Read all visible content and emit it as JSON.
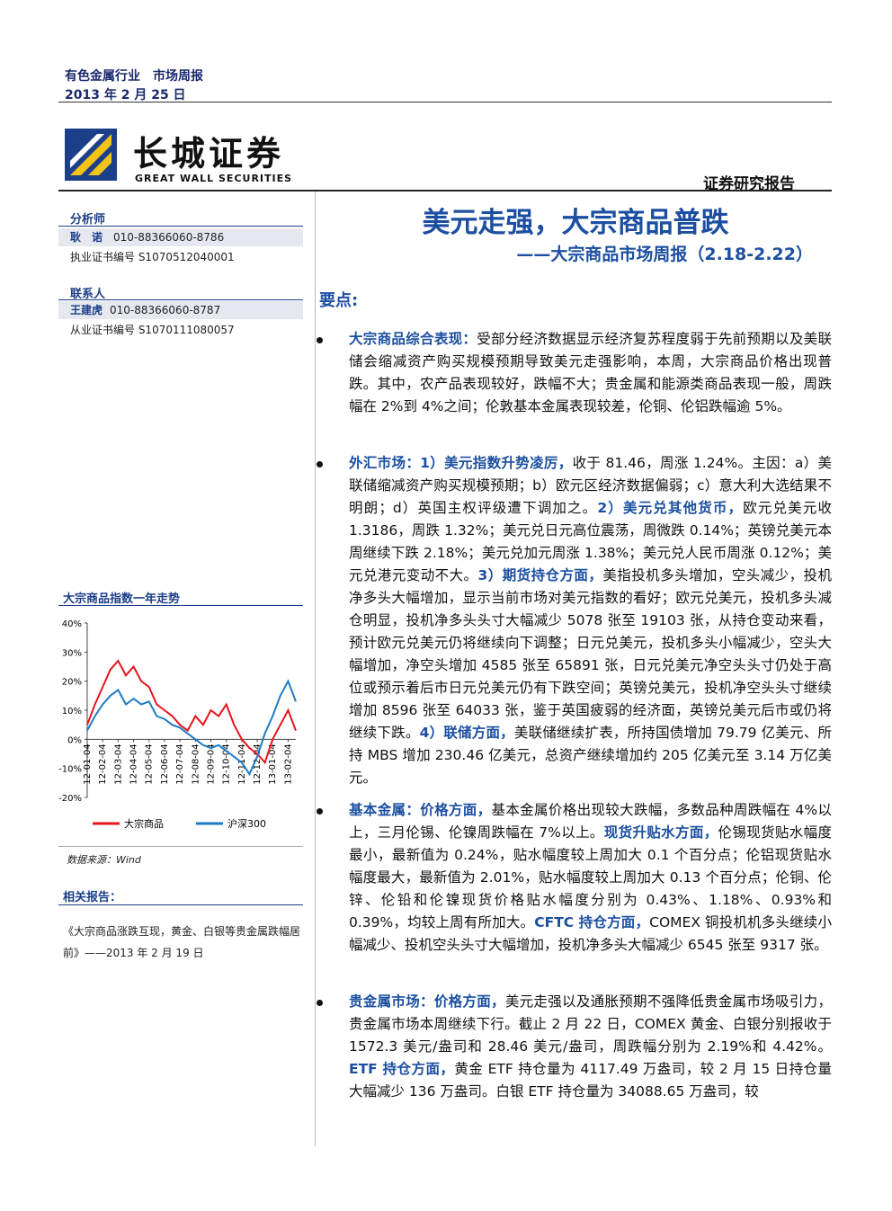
{
  "header": {
    "industry": "有色金属行业",
    "report_type": "市场周报",
    "date": "2013 年 2 月 25 日",
    "logo_cn": "长城证券",
    "logo_en": "GREAT WALL SECURITIES",
    "doc_type": "证券研究报告"
  },
  "sidebar": {
    "analyst_heading": "分析师",
    "analyst_name": "耿　诺",
    "analyst_phone": "010-88366060-8786",
    "analyst_cert": "执业证书编号 S1070512040001",
    "contact_heading": "联系人",
    "contact_name": "王建虎",
    "contact_phone": "010-88366060-8787",
    "contact_cert": "从业证书编号 S1070111080057",
    "chart_heading": "大宗商品指数一年走势",
    "source": "数据来源：Wind",
    "related_heading": "相关报告：",
    "related_report": "《大宗商品涨跌互现，黄金、白银等贵金属跌幅居前》——2013 年 2 月 19 日"
  },
  "chart_data": {
    "type": "line",
    "categories": [
      "12-01-04",
      null,
      "12-02-04",
      null,
      "12-03-04",
      null,
      "12-04-04",
      null,
      "12-05-04",
      null,
      "12-06-04",
      null,
      "12-07-04",
      null,
      "12-08-04",
      null,
      "12-09-04",
      null,
      "12-10-04",
      null,
      "12-11-04",
      null,
      "12-12-04",
      null,
      "13-01-04",
      null,
      "13-02-04",
      null
    ],
    "series": [
      {
        "name": "大宗商品",
        "color": "#e8151b",
        "values": [
          5,
          12,
          18,
          24,
          27,
          22,
          25,
          20,
          18,
          12,
          10,
          8,
          5,
          3,
          8,
          5,
          10,
          8,
          12,
          5,
          0,
          -3,
          -5,
          -8,
          0,
          5,
          10,
          3
        ]
      },
      {
        "name": "沪深300",
        "color": "#1f7bc4",
        "values": [
          3,
          8,
          12,
          15,
          17,
          12,
          14,
          12,
          13,
          8,
          7,
          5,
          4,
          2,
          0,
          -2,
          -3,
          -2,
          -4,
          -6,
          -8,
          -12,
          -6,
          2,
          8,
          15,
          20,
          13
        ]
      }
    ],
    "ylim": [
      -20,
      40
    ],
    "yticks": [
      {
        "value": 40,
        "label": "40%"
      },
      {
        "value": 30,
        "label": "30%"
      },
      {
        "value": 20,
        "label": "20%"
      },
      {
        "value": 10,
        "label": "10%"
      },
      {
        "value": 0,
        "label": "0%"
      },
      {
        "value": -10,
        "label": "-10%"
      },
      {
        "value": -20,
        "label": "-20%"
      }
    ],
    "legend": "bottom"
  },
  "main": {
    "title": "美元走强，大宗商品普跌",
    "subtitle": "——大宗商品市场周报（2.18-2.22）",
    "key_points_heading": "要点:",
    "points": [
      {
        "runs": [
          {
            "text": "大宗商品综合表现：",
            "strong": true
          },
          {
            "text": "受部分经济数据显示经济复苏程度弱于先前预期以及美联储会缩减资产购买规模预期导致美元走强影响，本周，大宗商品价格出现普跌。其中，农产品表现较好，跌幅不大；贵金属和能源类商品表现一般，周跌幅在 2%到 4%之间；伦敦基本金属表现较差，伦铜、伦铝跌幅逾 5%。"
          }
        ]
      },
      {
        "runs": [
          {
            "text": "外汇市场：1）美元指数升势凌厉，",
            "strong": true
          },
          {
            "text": "收于 81.46，周涨 1.24%。主因：a）美联储缩减资产购买规模预期；b）欧元区经济数据偏弱；c）意大利大选结果不明朗；d）英国主权评级遭下调加之。"
          },
          {
            "text": "2）美元兑其他货币，",
            "strong": true
          },
          {
            "text": "欧元兑美元收 1.3186，周跌 1.32%；美元兑日元高位震荡，周微跌 0.14%；英镑兑美元本周继续下跌 2.18%；美元兑加元周涨 1.38%；美元兑人民币周涨 0.12%；美元兑港元变动不大。"
          },
          {
            "text": "3）期货持仓方面，",
            "strong": true
          },
          {
            "text": "美指投机多头增加，空头减少，投机净多头大幅增加，显示当前市场对美元指数的看好；欧元兑美元，投机多头减仓明显，投机净多头头寸大幅减少 5078 张至 19103 张，从持仓变动来看，预计欧元兑美元仍将继续向下调整；日元兑美元，投机多头小幅减少，空头大幅增加，净空头增加 4585 张至 65891 张，日元兑美元净空头头寸仍处于高位或预示着后市日元兑美元仍有下跌空间；英镑兑美元，投机净空头头寸继续增加 8596 张至 64033 张，鉴于英国疲弱的经济面，英镑兑美元后市或仍将继续下跌。"
          },
          {
            "text": "4）联储方面，",
            "strong": true
          },
          {
            "text": "美联储继续扩表，所持国债增加 79.79 亿美元、所持 MBS 增加 230.46 亿美元，总资产继续增加约 205 亿美元至 3.14 万亿美元。"
          }
        ]
      },
      {
        "runs": [
          {
            "text": "基本金属：价格方面，",
            "strong": true
          },
          {
            "text": "基本金属价格出现较大跌幅，多数品种周跌幅在 4%以上，三月伦锡、伦镍周跌幅在 7%以上。"
          },
          {
            "text": "现货升贴水方面，",
            "strong": true
          },
          {
            "text": "伦锡现货贴水幅度最小，最新值为 0.24%，贴水幅度较上周加大 0.1 个百分点；伦铝现货贴水幅度最大，最新值为 2.01%，贴水幅度较上周加大 0.13 个百分点；伦铜、伦锌、伦铅和伦镍现货价格贴水幅度分别为 0.43%、1.18%、0.93%和 0.39%，均较上周有所加大。"
          },
          {
            "text": "CFTC 持仓方面，",
            "strong": true
          },
          {
            "text": "COMEX 铜投机机多头继续小幅减少、投机空头头寸大幅增加，投机净多头大幅减少 6545 张至 9317 张。"
          }
        ]
      },
      {
        "runs": [
          {
            "text": "贵金属市场：价格方面，",
            "strong": true
          },
          {
            "text": "美元走强以及通胀预期不强降低贵金属市场吸引力，贵金属市场本周继续下行。截止 2 月 22 日，COMEX 黄金、白银分别报收于 1572.3 美元/盎司和 28.46 美元/盎司，周跌幅分别为 2.19%和 4.42%。"
          },
          {
            "text": "ETF 持仓方面，",
            "strong": true
          },
          {
            "text": "黄金 ETF 持仓量为 4117.49 万盎司，较 2 月 15 日持仓量大幅减少 136 万盎司。白银 ETF 持仓量为 34088.65 万盎司，较"
          }
        ]
      }
    ]
  }
}
